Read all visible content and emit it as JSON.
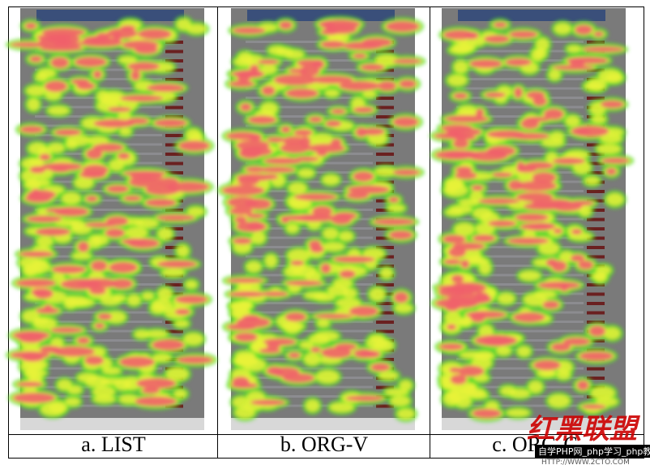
{
  "panels": [
    {
      "caption": "a. LIST"
    },
    {
      "caption": "b. ORG-V"
    },
    {
      "caption": "c. ORG-C"
    }
  ],
  "watermark": {
    "logo": "红黑联盟",
    "banner": "自学PHP网_php学习_php教",
    "url": "HTTP://WWW.2CTO.COM"
  }
}
